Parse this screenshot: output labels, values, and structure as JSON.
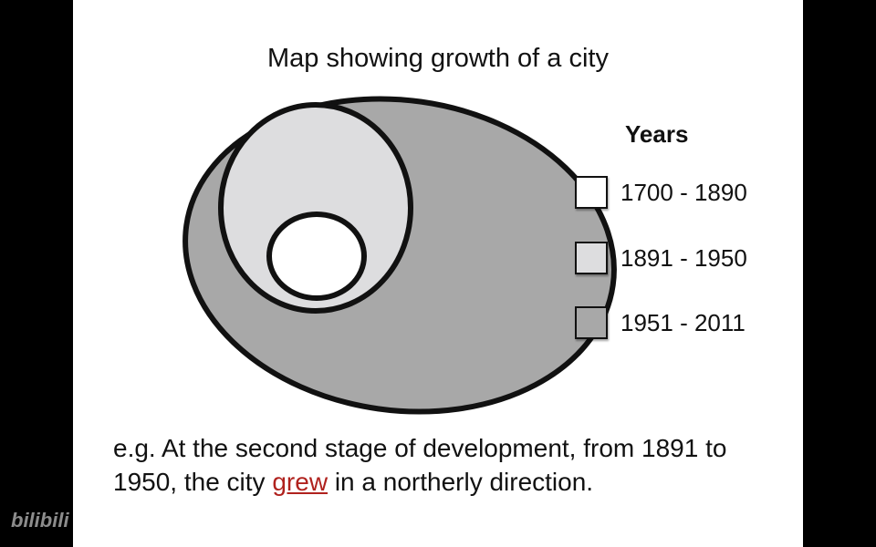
{
  "title": "Map showing growth of a city",
  "legend": {
    "title": "Years",
    "items": [
      {
        "label": "1700 - 1890",
        "color": "#ffffff"
      },
      {
        "label": "1891 - 1950",
        "color": "#dddddf"
      },
      {
        "label": "1951 - 2011",
        "color": "#a8a8a8"
      }
    ]
  },
  "caption": {
    "before": "e.g. At the second stage of development, from 1891 to 1950, the city ",
    "keyword": "grew",
    "after": " in a northerly direction."
  },
  "watermark": "bilibili",
  "colors": {
    "outline": "#111111",
    "keyword": "#b0221e"
  }
}
